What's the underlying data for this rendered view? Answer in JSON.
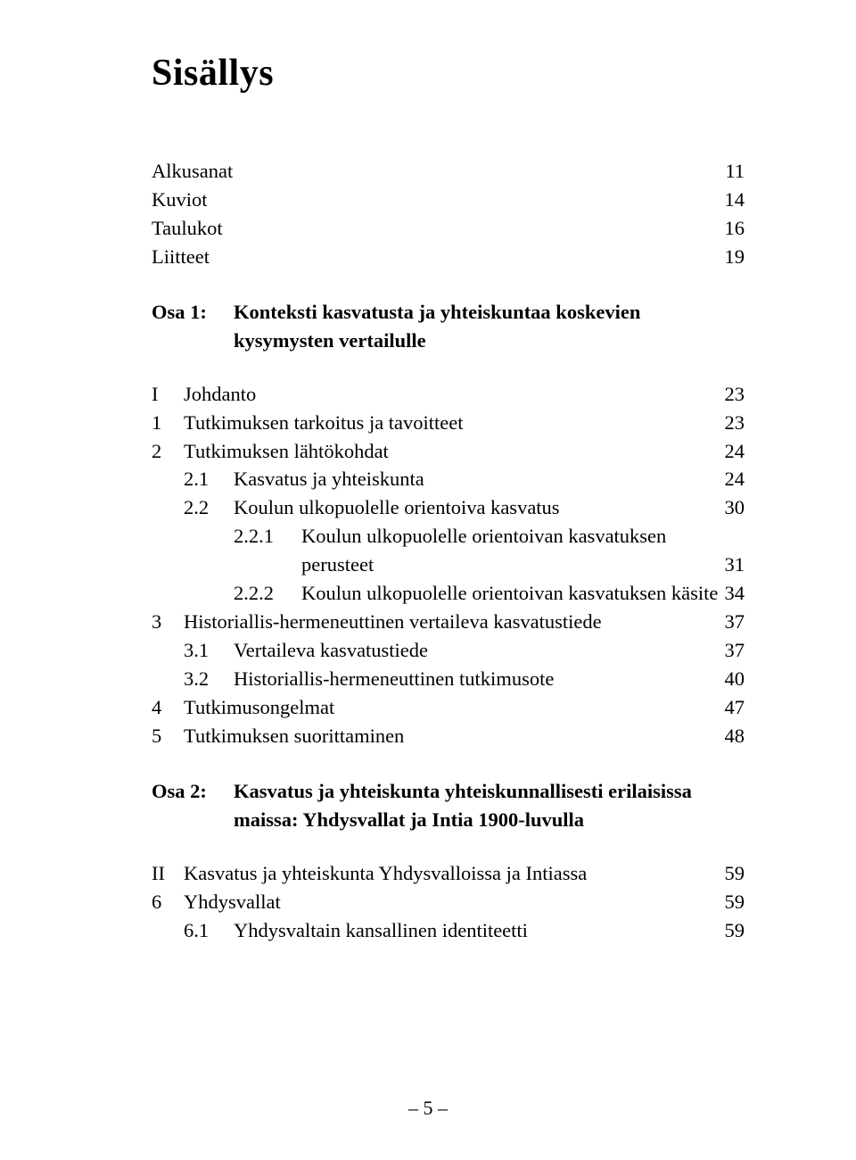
{
  "title": "Sisällys",
  "front_matter": [
    {
      "label": "Alkusanat",
      "page": "11"
    },
    {
      "label": "Kuviot",
      "page": "14"
    },
    {
      "label": "Taulukot",
      "page": "16"
    },
    {
      "label": "Liitteet",
      "page": "19"
    }
  ],
  "osa1": {
    "label": "Osa 1:",
    "title_line1": "Konteksti kasvatusta ja yhteiskuntaa koskevien",
    "title_line2": "kysymysten vertailulle"
  },
  "part_I": {
    "roman": "I",
    "label": "Johdanto",
    "page": "23"
  },
  "chapters_a": [
    {
      "num": "1",
      "label": "Tutkimuksen tarkoitus ja tavoitteet",
      "page": "23"
    },
    {
      "num": "2",
      "label": "Tutkimuksen lähtökohdat",
      "page": "24"
    }
  ],
  "subs_2": [
    {
      "num": "2.1",
      "label": "Kasvatus ja yhteiskunta",
      "page": "24"
    },
    {
      "num": "2.2",
      "label": "Koulun ulkopuolelle orientoiva kasvatus",
      "page": "30"
    }
  ],
  "subsubs_22": [
    {
      "num": "2.2.1",
      "label_line1": "Koulun ulkopuolelle orientoivan kasvatuksen",
      "label_line2": "perusteet",
      "page": "31"
    },
    {
      "num": "2.2.2",
      "label": "Koulun ulkopuolelle orientoivan kasvatuksen käsite",
      "page": "34"
    }
  ],
  "chapters_b": [
    {
      "num": "3",
      "label": "Historiallis-hermeneuttinen vertaileva kasvatustiede",
      "page": "37"
    }
  ],
  "subs_3": [
    {
      "num": "3.1",
      "label": "Vertaileva kasvatustiede",
      "page": "37"
    },
    {
      "num": "3.2",
      "label": "Historiallis-hermeneuttinen tutkimusote",
      "page": "40"
    }
  ],
  "chapters_c": [
    {
      "num": "4",
      "label": "Tutkimusongelmat",
      "page": "47"
    },
    {
      "num": "5",
      "label": "Tutkimuksen suorittaminen",
      "page": "48"
    }
  ],
  "osa2": {
    "label": "Osa 2:",
    "title_line1": "Kasvatus ja yhteiskunta yhteiskunnallisesti erilaisissa",
    "title_line2": "maissa: Yhdysvallat ja Intia 1900-luvulla"
  },
  "part_II": {
    "roman": "II",
    "label": "Kasvatus ja yhteiskunta Yhdysvalloissa ja Intiassa",
    "page": "59"
  },
  "chapters_d": [
    {
      "num": "6",
      "label": "Yhdysvallat",
      "page": "59"
    }
  ],
  "subs_6": [
    {
      "num": "6.1",
      "label": "Yhdysvaltain kansallinen identiteetti",
      "page": "59"
    }
  ],
  "footer_page": "– 5 –"
}
